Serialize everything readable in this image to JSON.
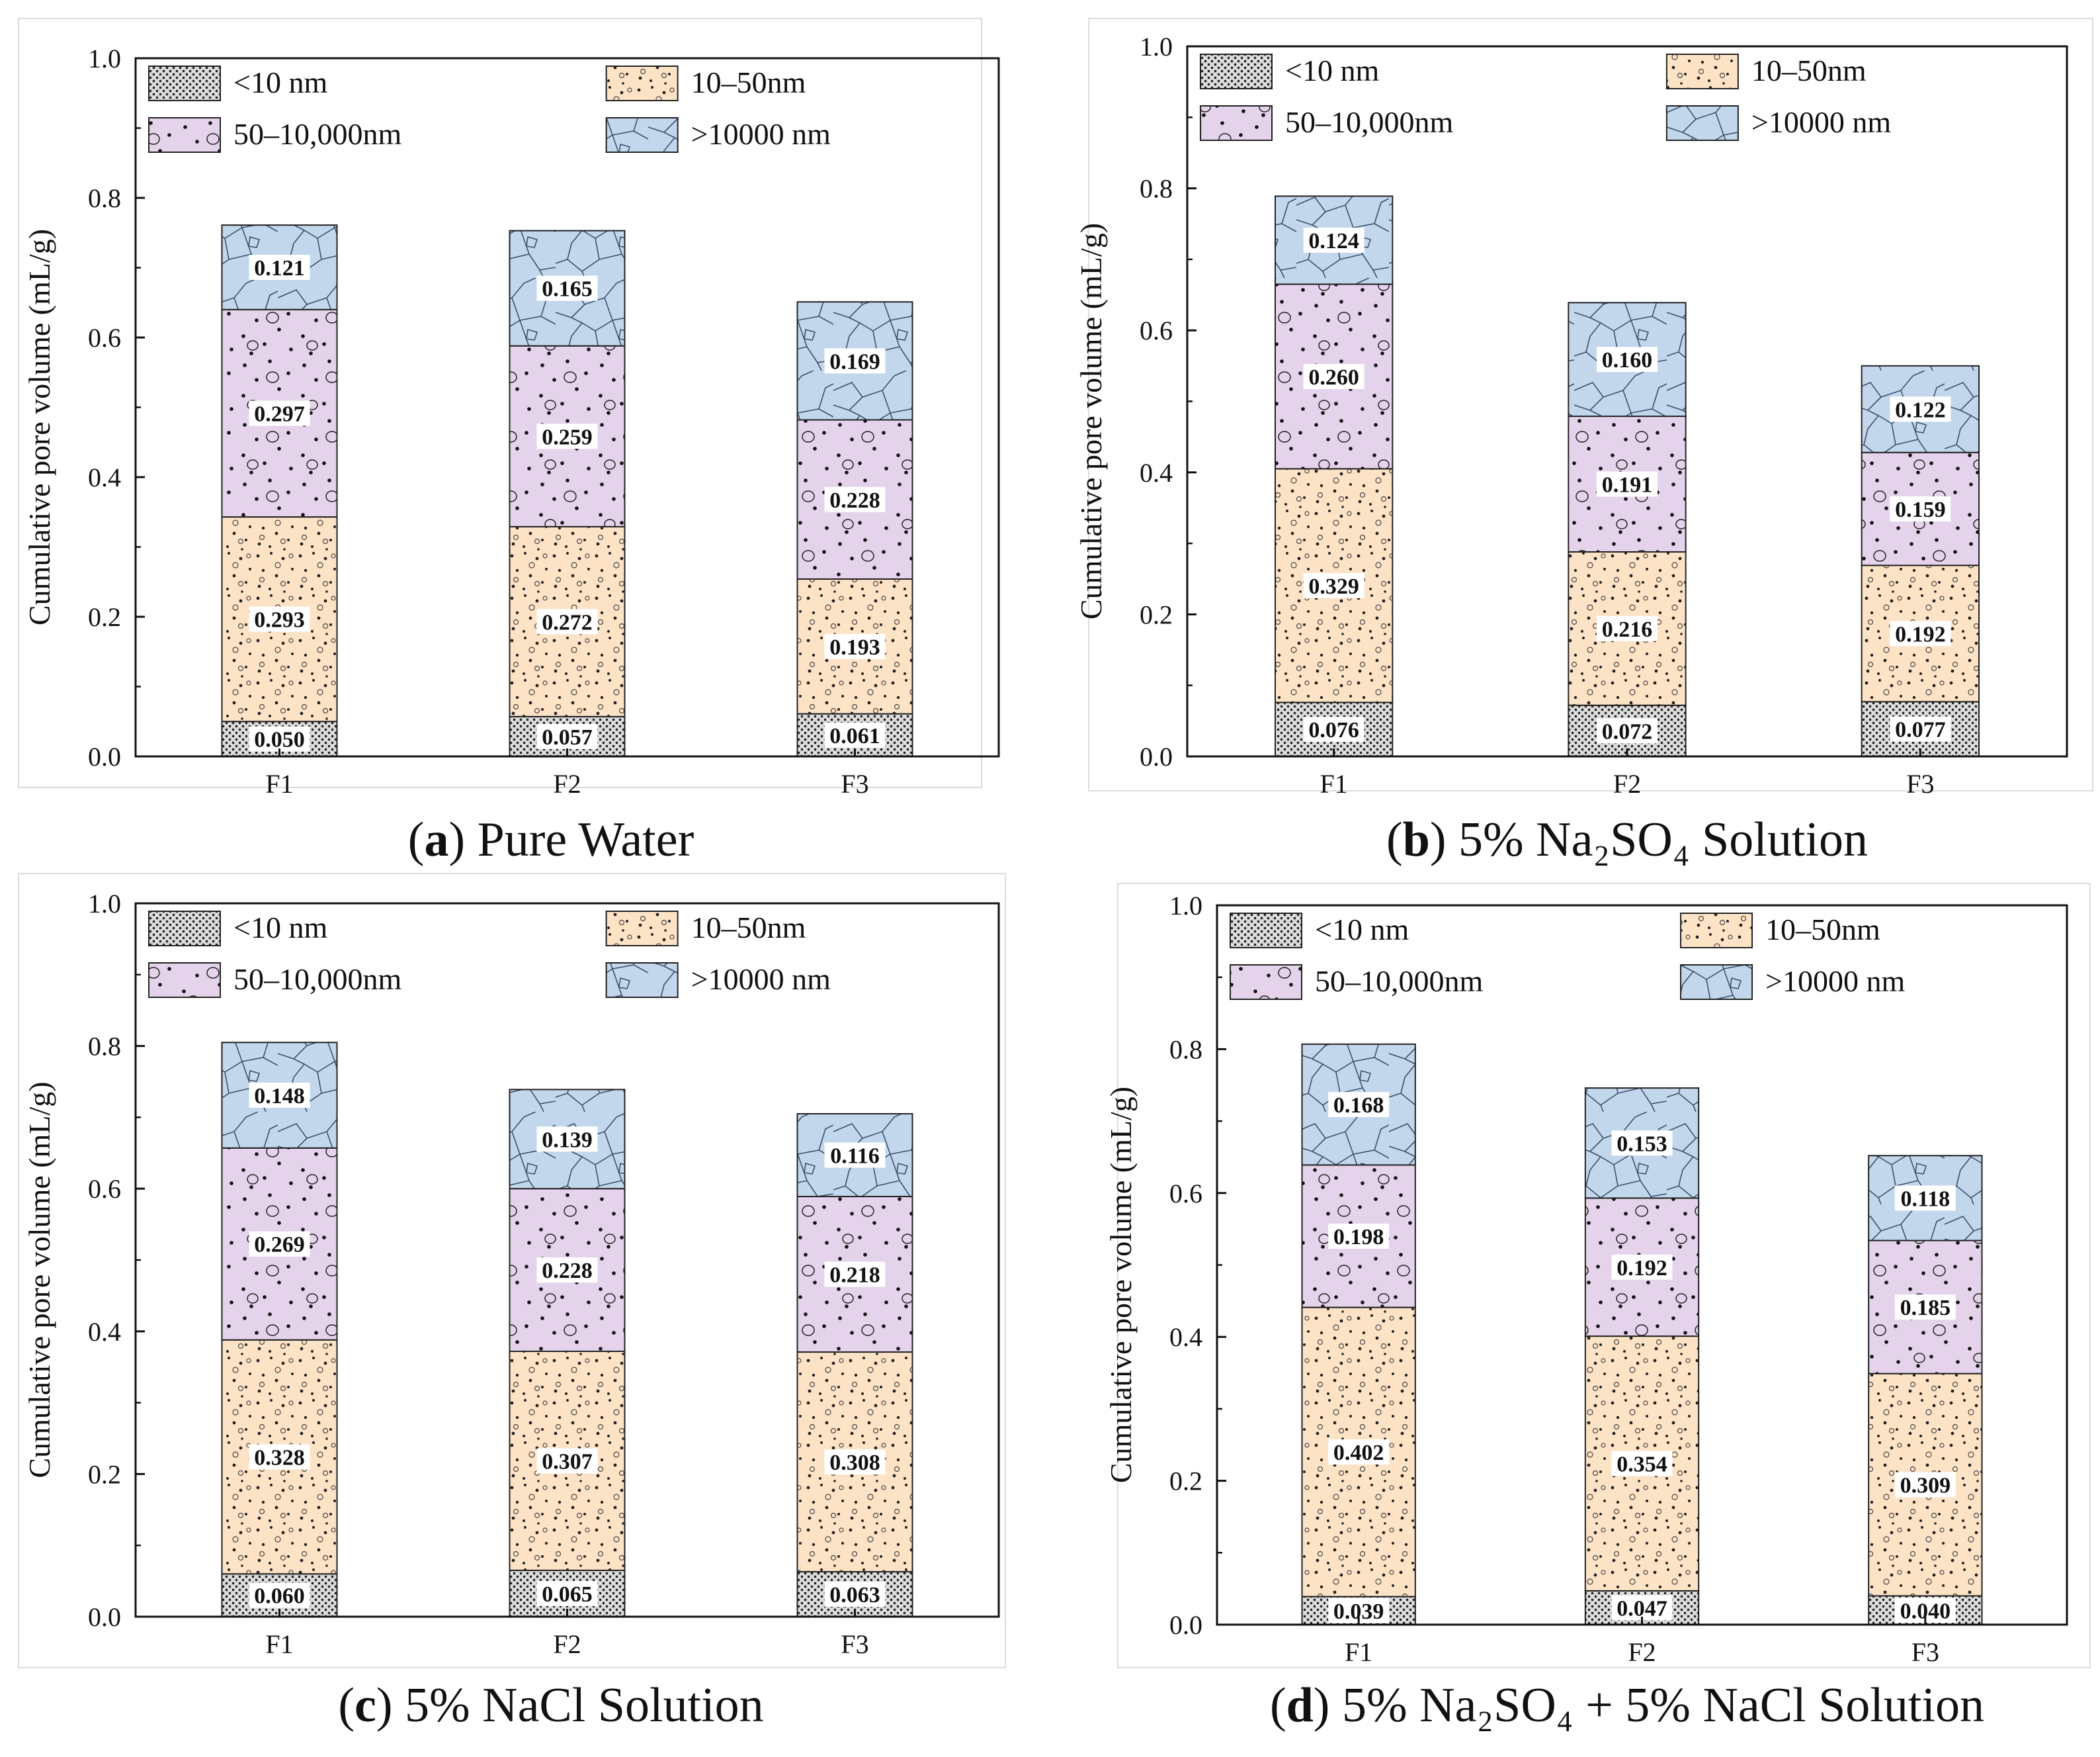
{
  "figure": {
    "panels": [
      {
        "letter": "a",
        "title": "Pure Water"
      },
      {
        "letter": "b",
        "title": "5% Na₂SO₄ Solution"
      },
      {
        "letter": "c",
        "title": "5% NaCl Solution"
      },
      {
        "letter": "d",
        "title": "5% Na₂SO₄ + 5% NaCl Solution"
      }
    ]
  },
  "colors": {
    "lt10": "#d6d6d6",
    "r10_50": "#fde3c6",
    "r50_10000": "#e4d3ea",
    "gt10000": "#c3d7ec"
  },
  "chart_data": [
    {
      "type": "bar",
      "stacked": true,
      "title": "(a) Pure Water",
      "xlabel": "",
      "ylabel": "Cumulative pore volume (mL/g)",
      "ylim": [
        0,
        1.0
      ],
      "yticks": [
        "0.0",
        "0.2",
        "0.4",
        "0.6",
        "0.8",
        "1.0"
      ],
      "legend_position": "top-left",
      "categories": [
        "F1",
        "F2",
        "F3"
      ],
      "series": [
        {
          "name": "<10 nm",
          "values": [
            0.05,
            0.057,
            0.061
          ],
          "labels": [
            "0.050",
            "0.057",
            "0.061"
          ]
        },
        {
          "name": "10–50nm",
          "values": [
            0.293,
            0.272,
            0.193
          ],
          "labels": [
            "0.293",
            "0.272",
            "0.193"
          ]
        },
        {
          "name": "50–10,000nm",
          "values": [
            0.297,
            0.259,
            0.228
          ],
          "labels": [
            "0.297",
            "0.259",
            "0.228"
          ]
        },
        {
          "name": ">10000 nm",
          "values": [
            0.121,
            0.165,
            0.169
          ],
          "labels": [
            "0.121",
            "0.165",
            "0.169"
          ]
        }
      ]
    },
    {
      "type": "bar",
      "stacked": true,
      "title": "(b) 5% Na₂SO₄ Solution",
      "xlabel": "",
      "ylabel": "Cumulative pore volume (mL/g)",
      "ylim": [
        0,
        1.0
      ],
      "yticks": [
        "0.0",
        "0.2",
        "0.4",
        "0.6",
        "0.8",
        "1.0"
      ],
      "legend_position": "top-left",
      "categories": [
        "F1",
        "F2",
        "F3"
      ],
      "series": [
        {
          "name": "<10 nm",
          "values": [
            0.076,
            0.072,
            0.077
          ],
          "labels": [
            "0.076",
            "0.072",
            "0.077"
          ]
        },
        {
          "name": "10–50nm",
          "values": [
            0.329,
            0.216,
            0.192
          ],
          "labels": [
            "0.329",
            "0.216",
            "0.192"
          ]
        },
        {
          "name": "50–10,000nm",
          "values": [
            0.26,
            0.191,
            0.159
          ],
          "labels": [
            "0.260",
            "0.191",
            "0.159"
          ]
        },
        {
          "name": ">10000 nm",
          "values": [
            0.124,
            0.16,
            0.122
          ],
          "labels": [
            "0.124",
            "0.160",
            "0.122"
          ]
        }
      ]
    },
    {
      "type": "bar",
      "stacked": true,
      "title": "(c) 5% NaCl Solution",
      "xlabel": "",
      "ylabel": "Cumulative pore volume (mL/g)",
      "ylim": [
        0,
        1.0
      ],
      "yticks": [
        "0.0",
        "0.2",
        "0.4",
        "0.6",
        "0.8",
        "1.0"
      ],
      "legend_position": "top-left",
      "categories": [
        "F1",
        "F2",
        "F3"
      ],
      "series": [
        {
          "name": "<10 nm",
          "values": [
            0.06,
            0.065,
            0.063
          ],
          "labels": [
            "0.060",
            "0.065",
            "0.063"
          ]
        },
        {
          "name": "10–50nm",
          "values": [
            0.328,
            0.307,
            0.308
          ],
          "labels": [
            "0.328",
            "0.307",
            "0.308"
          ]
        },
        {
          "name": "50–10,000nm",
          "values": [
            0.269,
            0.228,
            0.218
          ],
          "labels": [
            "0.269",
            "0.228",
            "0.218"
          ]
        },
        {
          "name": ">10000 nm",
          "values": [
            0.148,
            0.139,
            0.116
          ],
          "labels": [
            "0.148",
            "0.139",
            "0.116"
          ]
        }
      ]
    },
    {
      "type": "bar",
      "stacked": true,
      "title": "(d) 5% Na₂SO₄ + 5% NaCl Solution",
      "xlabel": "",
      "ylabel": "Cumulative pore volume (mL/g)",
      "ylim": [
        0,
        1.0
      ],
      "yticks": [
        "0.0",
        "0.2",
        "0.4",
        "0.6",
        "0.8",
        "1.0"
      ],
      "legend_position": "top-left",
      "categories": [
        "F1",
        "F2",
        "F3"
      ],
      "series": [
        {
          "name": "<10 nm",
          "values": [
            0.039,
            0.047,
            0.04
          ],
          "labels": [
            "0.039",
            "0.047",
            "0.040"
          ]
        },
        {
          "name": "10–50nm",
          "values": [
            0.402,
            0.354,
            0.309
          ],
          "labels": [
            "0.402",
            "0.354",
            "0.309"
          ]
        },
        {
          "name": "50–10,000nm",
          "values": [
            0.198,
            0.192,
            0.185
          ],
          "labels": [
            "0.198",
            "0.192",
            "0.185"
          ]
        },
        {
          "name": ">10000 nm",
          "values": [
            0.168,
            0.153,
            0.118
          ],
          "labels": [
            "0.168",
            "0.153",
            "0.118"
          ]
        }
      ]
    }
  ]
}
